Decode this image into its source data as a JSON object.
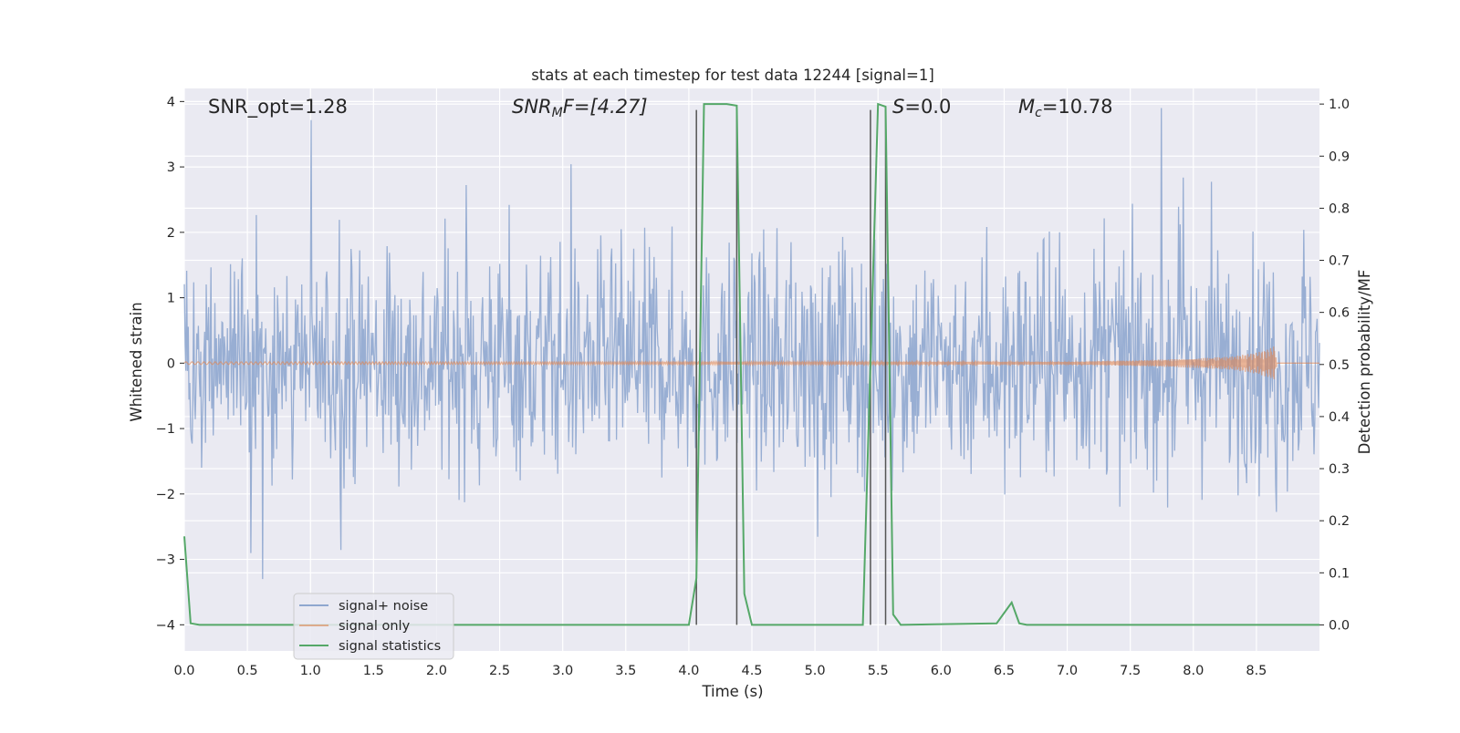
{
  "chart_data": {
    "type": "line",
    "title": "stats at each timestep for test data 12244 [signal=1]",
    "xlabel": "Time (s)",
    "ylabel_left": "Whitened strain",
    "ylabel_right": "Detection probability/MF",
    "xlim": [
      0.0,
      9.0
    ],
    "ylim_left": [
      -4.4,
      4.2
    ],
    "ylim_right": [
      -0.05,
      1.03
    ],
    "xticks": [
      "0.0",
      "0.5",
      "1.0",
      "1.5",
      "2.0",
      "2.5",
      "3.0",
      "3.5",
      "4.0",
      "4.5",
      "5.0",
      "5.5",
      "6.0",
      "6.5",
      "7.0",
      "7.5",
      "8.0",
      "8.5"
    ],
    "yticks_left": [
      "4",
      "3",
      "2",
      "1",
      "0",
      "−1",
      "−2",
      "−3",
      "−4"
    ],
    "yticks_right": [
      "1.0",
      "0.9",
      "0.8",
      "0.7",
      "0.6",
      "0.5",
      "0.4",
      "0.3",
      "0.2",
      "0.1",
      "0.0"
    ],
    "grid": true,
    "legend_position": "lower-left",
    "background_color": "#eaeaf2",
    "grid_color": "#ffffff",
    "annotations": {
      "snr_opt": "SNR_opt=1.28",
      "snr_mf_main": "SNR",
      "snr_mf_sub": "M",
      "snr_mf_rest": "F=[4.27]",
      "s_main": "S",
      "s_rest": "=0.0",
      "mc_main": "M",
      "mc_sub": "c",
      "mc_rest": "=10.78"
    },
    "series": [
      {
        "name": "signal+ noise",
        "axis": "left",
        "color": "#8fa7cf",
        "description_range": [
          -3.3,
          3.9
        ]
      },
      {
        "name": "signal only",
        "axis": "left",
        "color": "#dd8452",
        "x": [
          0.0,
          7.0,
          7.5,
          8.0,
          8.3,
          8.5,
          8.6,
          8.65,
          8.66,
          9.0
        ],
        "envelope": [
          0.02,
          0.02,
          0.04,
          0.07,
          0.1,
          0.16,
          0.22,
          0.27,
          0.0,
          0.0
        ]
      },
      {
        "name": "signal statistics",
        "axis": "right",
        "color": "#55a868",
        "x": [
          0.0,
          0.05,
          0.12,
          4.0,
          4.06,
          4.12,
          4.3,
          4.38,
          4.44,
          4.5,
          5.38,
          5.44,
          5.5,
          5.56,
          5.62,
          5.68,
          6.44,
          6.56,
          6.62,
          6.68,
          9.0
        ],
        "y": [
          0.17,
          0.003,
          0.0,
          0.0,
          0.09,
          1.0,
          1.0,
          0.997,
          0.06,
          0.0,
          0.0,
          0.5,
          1.0,
          0.995,
          0.02,
          0.0,
          0.003,
          0.043,
          0.003,
          0.0,
          0.0
        ]
      }
    ],
    "vertical_markers": [
      4.06,
      4.38,
      5.44,
      5.56
    ],
    "marker_color": "#555555"
  }
}
